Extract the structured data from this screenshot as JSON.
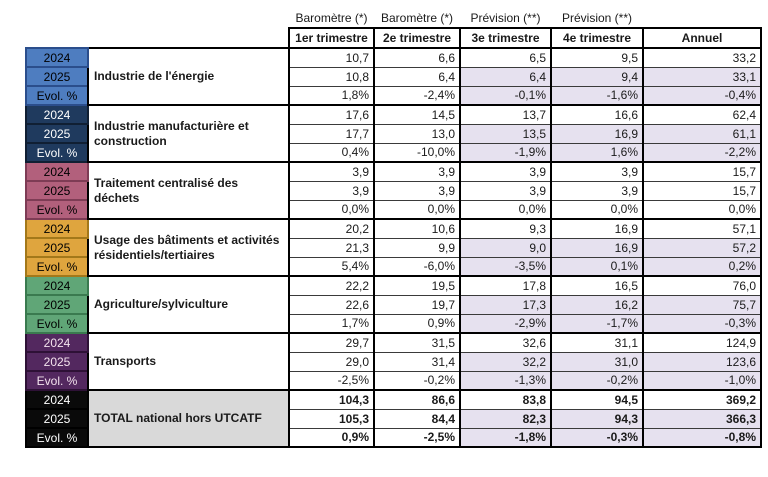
{
  "table": {
    "group_labels": [
      "Baromètre (*)",
      "Baromètre (*)",
      "Prévision (**)",
      "Prévision (**)",
      ""
    ],
    "columns": [
      "1er trimestre",
      "2e trimestre",
      "3e trimestre",
      "4e trimestre",
      "Annuel"
    ],
    "row_labels": [
      "2024",
      "2025",
      "Evol. %"
    ],
    "shade_color": "#e6e1ef",
    "grid_color": "#000000",
    "groups": [
      {
        "category": "Industrie de l'énergie",
        "year_fill": "#4e7dc0",
        "year_border": "#2b4e8c",
        "year_text": "#000000",
        "shaded": true,
        "rows": [
          [
            "10,7",
            "6,6",
            "6,5",
            "9,5",
            "33,2"
          ],
          [
            "10,8",
            "6,4",
            "6,4",
            "9,4",
            "33,1"
          ],
          [
            "1,8%",
            "-2,4%",
            "-0,1%",
            "-1,6%",
            "-0,4%"
          ]
        ]
      },
      {
        "category": "Industrie manufacturière et construction",
        "year_fill": "#1f3a5e",
        "year_border": "#101f33",
        "year_text": "#ffffff",
        "shaded": true,
        "rows": [
          [
            "17,6",
            "14,5",
            "13,7",
            "16,6",
            "62,4"
          ],
          [
            "17,7",
            "13,0",
            "13,5",
            "16,9",
            "61,1"
          ],
          [
            "0,4%",
            "-10,0%",
            "-1,9%",
            "1,6%",
            "-2,2%"
          ]
        ]
      },
      {
        "category": "Traitement centralisé des déchets",
        "year_fill": "#b2607c",
        "year_border": "#7e3c55",
        "year_text": "#000000",
        "shaded": false,
        "rows": [
          [
            "3,9",
            "3,9",
            "3,9",
            "3,9",
            "15,7"
          ],
          [
            "3,9",
            "3,9",
            "3,9",
            "3,9",
            "15,7"
          ],
          [
            "0,0%",
            "0,0%",
            "0,0%",
            "0,0%",
            "0,0%"
          ]
        ]
      },
      {
        "category": "Usage des bâtiments et activités résidentiels/tertiaires",
        "year_fill": "#dfa53e",
        "year_border": "#a3781a",
        "year_text": "#000000",
        "shaded": true,
        "rows": [
          [
            "20,2",
            "10,6",
            "9,3",
            "16,9",
            "57,1"
          ],
          [
            "21,3",
            "9,9",
            "9,0",
            "16,9",
            "57,2"
          ],
          [
            "5,4%",
            "-6,0%",
            "-3,5%",
            "0,1%",
            "0,2%"
          ]
        ]
      },
      {
        "category": "Agriculture/sylviculture",
        "year_fill": "#60a677",
        "year_border": "#3a7a4f",
        "year_text": "#000000",
        "shaded": true,
        "rows": [
          [
            "22,2",
            "19,5",
            "17,8",
            "16,5",
            "76,0"
          ],
          [
            "22,6",
            "19,7",
            "17,3",
            "16,2",
            "75,7"
          ],
          [
            "1,7%",
            "0,9%",
            "-2,9%",
            "-1,7%",
            "-0,3%"
          ]
        ]
      },
      {
        "category": "Transports",
        "year_fill": "#53285f",
        "year_border": "#2e1136",
        "year_text": "#f4e3ee",
        "shaded": true,
        "rows": [
          [
            "29,7",
            "31,5",
            "32,6",
            "31,1",
            "124,9"
          ],
          [
            "29,0",
            "31,4",
            "32,2",
            "31,0",
            "123,6"
          ],
          [
            "-2,5%",
            "-0,2%",
            "-1,3%",
            "-0,2%",
            "-1,0%"
          ]
        ]
      },
      {
        "category": "TOTAL national hors UTCATF",
        "year_fill": "#0a0a0a",
        "year_border": "#000000",
        "year_text": "#ffffff",
        "category_bg": "#d9d9d9",
        "bold": true,
        "shaded": true,
        "rows": [
          [
            "104,3",
            "86,6",
            "83,8",
            "94,5",
            "369,2"
          ],
          [
            "105,3",
            "84,4",
            "82,3",
            "94,3",
            "366,3"
          ],
          [
            "0,9%",
            "-2,5%",
            "-1,8%",
            "-0,3%",
            "-0,8%"
          ]
        ]
      }
    ]
  }
}
